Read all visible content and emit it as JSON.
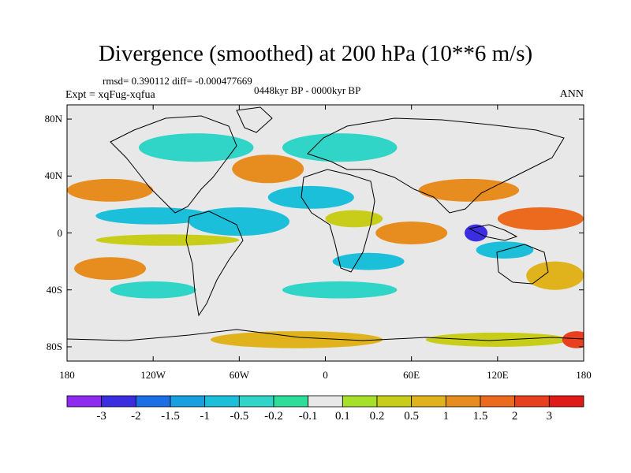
{
  "title": "Divergence (smoothed) at 200 hPa (10**6 m/s)",
  "stats": {
    "rmsd": "rmsd= 0.390112 diff= -0.000477669",
    "period": "0448kyr BP - 0000kyr BP"
  },
  "experiment": "Expt = xqFug-xqfua",
  "season": "ANN",
  "map": {
    "projection": "cylindrical-equidistant",
    "lon_range": [
      -180,
      180
    ],
    "lat_range": [
      -90,
      90
    ],
    "lat_ticks": [
      "80N",
      "40N",
      "0",
      "40S",
      "80S"
    ],
    "lon_ticks": [
      "180",
      "120W",
      "60W",
      "0",
      "60E",
      "120E",
      "180"
    ],
    "field_regions": [
      {
        "lon": -150,
        "lat": 30,
        "rx": 30,
        "ry": 8,
        "value": 1
      },
      {
        "lon": -150,
        "lat": -25,
        "rx": 25,
        "ry": 8,
        "value": 1
      },
      {
        "lon": -120,
        "lat": 12,
        "rx": 40,
        "ry": 6,
        "value": -1
      },
      {
        "lon": -110,
        "lat": -5,
        "rx": 50,
        "ry": 4,
        "value": 0.2
      },
      {
        "lon": -60,
        "lat": 8,
        "rx": 35,
        "ry": 10,
        "value": -1
      },
      {
        "lon": -40,
        "lat": 45,
        "rx": 25,
        "ry": 10,
        "value": 1
      },
      {
        "lon": -90,
        "lat": 60,
        "rx": 40,
        "ry": 10,
        "value": -0.5
      },
      {
        "lon": 10,
        "lat": 60,
        "rx": 40,
        "ry": 10,
        "value": -0.5
      },
      {
        "lon": -10,
        "lat": 25,
        "rx": 30,
        "ry": 8,
        "value": -1
      },
      {
        "lon": 60,
        "lat": 0,
        "rx": 25,
        "ry": 8,
        "value": 1
      },
      {
        "lon": 30,
        "lat": -20,
        "rx": 25,
        "ry": 6,
        "value": -1
      },
      {
        "lon": 20,
        "lat": 10,
        "rx": 20,
        "ry": 6,
        "value": 0.2
      },
      {
        "lon": 100,
        "lat": 30,
        "rx": 35,
        "ry": 8,
        "value": 1
      },
      {
        "lon": 150,
        "lat": 10,
        "rx": 30,
        "ry": 8,
        "value": 1.5
      },
      {
        "lon": 105,
        "lat": 0,
        "rx": 8,
        "ry": 6,
        "value": -3
      },
      {
        "lon": 125,
        "lat": -12,
        "rx": 20,
        "ry": 6,
        "value": -1
      },
      {
        "lon": 160,
        "lat": -30,
        "rx": 20,
        "ry": 10,
        "value": 0.5
      },
      {
        "lon": -120,
        "lat": -40,
        "rx": 30,
        "ry": 6,
        "value": -0.5
      },
      {
        "lon": 10,
        "lat": -40,
        "rx": 40,
        "ry": 6,
        "value": -0.5
      },
      {
        "lon": -20,
        "lat": -75,
        "rx": 60,
        "ry": 6,
        "value": 0.5
      },
      {
        "lon": 120,
        "lat": -75,
        "rx": 50,
        "ry": 5,
        "value": 0.2
      },
      {
        "lon": 175,
        "lat": -75,
        "rx": 10,
        "ry": 6,
        "value": 2
      }
    ]
  },
  "colorbar": {
    "labels": [
      "-3",
      "-2",
      "-1.5",
      "-1",
      "-0.5",
      "-0.2",
      "-0.1",
      "0.1",
      "0.2",
      "0.5",
      "1",
      "1.5",
      "2",
      "3"
    ],
    "colors": [
      "#8f2bee",
      "#3b2ee0",
      "#1a6ee6",
      "#17a0e0",
      "#1bbfd9",
      "#30d5c8",
      "#2edd9a",
      "#e8e8e8",
      "#a6e029",
      "#c8cd1a",
      "#e0b21c",
      "#e78d1f",
      "#ec6a1e",
      "#e8401f",
      "#e01a16"
    ]
  }
}
